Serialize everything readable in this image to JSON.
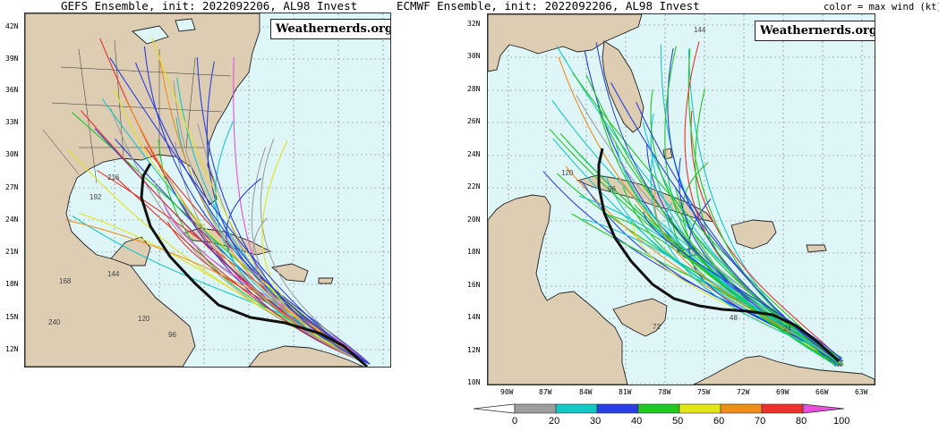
{
  "left_panel": {
    "title": "GEFS Ensemble, init: 2022092206, AL98 Invest",
    "watermark": "Weathernerds.org",
    "lat_labels": [
      "42N",
      "39N",
      "36N",
      "33N",
      "30N",
      "27N",
      "24N",
      "21N",
      "18N",
      "15N",
      "12N"
    ],
    "hour_labels": [
      "240",
      "216",
      "192",
      "168",
      "144",
      "120",
      "96"
    ]
  },
  "right_panel": {
    "title": "ECMWF Ensemble, init: 2022092206, AL98 Invest",
    "color_note": "color = max wind (kt)",
    "watermark": "Weathernerds.org",
    "lat_labels": [
      "32N",
      "30N",
      "28N",
      "26N",
      "24N",
      "22N",
      "20N",
      "18N",
      "16N",
      "14N",
      "12N",
      "10N"
    ],
    "lon_labels": [
      "90W",
      "87W",
      "84W",
      "81W",
      "78W",
      "75W",
      "72W",
      "69W",
      "66W",
      "63W"
    ],
    "hour_labels": [
      "144",
      "120",
      "96",
      "72",
      "48",
      "24"
    ]
  },
  "colorbar": {
    "ticks": [
      "0",
      "20",
      "30",
      "40",
      "50",
      "60",
      "70",
      "80",
      "100"
    ],
    "colors": [
      "#9e9e9e",
      "#17c7c7",
      "#2a3fe0",
      "#22c722",
      "#e3e31e",
      "#ef8c1e",
      "#e8322a",
      "#e84fdc"
    ]
  },
  "colors": {
    "ocean": "#dff6f8",
    "land": "#dccdb3",
    "mean_track": "#111111"
  }
}
